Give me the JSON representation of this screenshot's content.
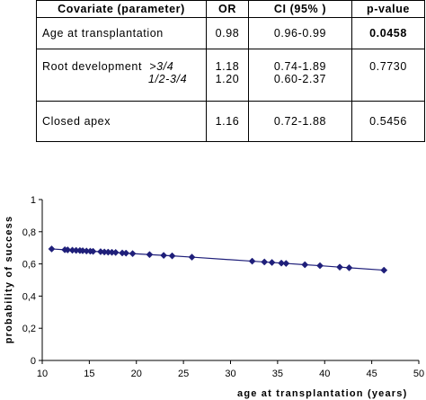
{
  "table": {
    "headers": [
      "Covariate (parameter)",
      "OR",
      "CI (95% )",
      "p-value"
    ],
    "rows": [
      {
        "covariate": "Age at transplantation",
        "or": "0.98",
        "ci": "0.96-0.99",
        "p": "0.0458"
      },
      {
        "covariate": "Root development",
        "sub1": ">3/4",
        "sub2": "1/2-3/4",
        "or1": "1.18",
        "or2": "1.20",
        "ci1": "0.74-1.89",
        "ci2": "0.60-2.37",
        "p": "0.7730"
      },
      {
        "covariate": "Closed apex",
        "or": "1.16",
        "ci": "0.72-1.88",
        "p": "0.5456"
      }
    ]
  },
  "chart_data": {
    "type": "line",
    "xlabel": "age at transplantation (years)",
    "ylabel": "probability of success",
    "xlim": [
      10,
      50
    ],
    "ylim": [
      0,
      1
    ],
    "xticks": [
      "10",
      "15",
      "20",
      "25",
      "30",
      "35",
      "40",
      "45",
      "50"
    ],
    "yticks": [
      "0",
      "0,2",
      "0,4",
      "0,6",
      "0,8",
      "1"
    ],
    "series": [
      {
        "color": "#1f1f7a",
        "marker": "diamond",
        "points": [
          [
            11.0,
            0.693
          ],
          [
            12.4,
            0.688
          ],
          [
            12.7,
            0.687
          ],
          [
            13.2,
            0.685
          ],
          [
            13.6,
            0.684
          ],
          [
            14.0,
            0.683
          ],
          [
            14.3,
            0.682
          ],
          [
            14.7,
            0.68
          ],
          [
            15.1,
            0.679
          ],
          [
            15.4,
            0.678
          ],
          [
            16.2,
            0.676
          ],
          [
            16.6,
            0.674
          ],
          [
            17.0,
            0.673
          ],
          [
            17.4,
            0.672
          ],
          [
            17.8,
            0.671
          ],
          [
            18.5,
            0.668
          ],
          [
            18.9,
            0.667
          ],
          [
            19.6,
            0.664
          ],
          [
            21.4,
            0.658
          ],
          [
            22.9,
            0.653
          ],
          [
            23.8,
            0.65
          ],
          [
            25.9,
            0.642
          ],
          [
            32.3,
            0.617
          ],
          [
            33.6,
            0.612
          ],
          [
            34.4,
            0.609
          ],
          [
            35.4,
            0.605
          ],
          [
            35.9,
            0.603
          ],
          [
            37.9,
            0.595
          ],
          [
            39.5,
            0.589
          ],
          [
            41.6,
            0.58
          ],
          [
            42.6,
            0.576
          ],
          [
            46.3,
            0.561
          ]
        ]
      }
    ]
  }
}
